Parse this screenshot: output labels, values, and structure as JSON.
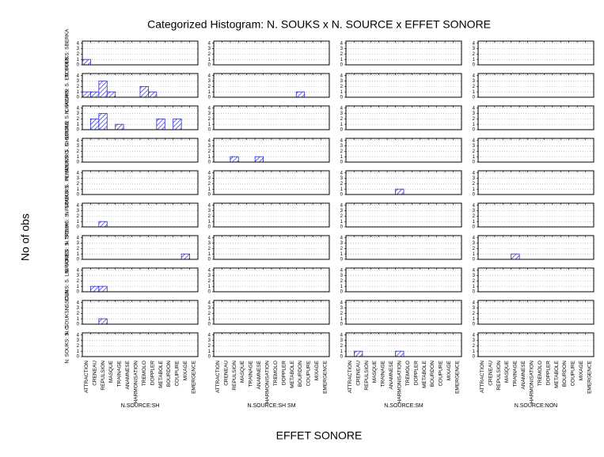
{
  "chart_data": {
    "type": "bar",
    "title": "Categorized Histogram: N. SOUKS x N. SOURCE x EFFET SONORE",
    "xlabel": "EFFET SONORE",
    "ylabel": "No of obs",
    "categories": [
      "ATTRACTION",
      "CRENEAU",
      "REPULSION",
      "MASQUE",
      "TRAINAGE",
      "ANAMNESE",
      "HARMONISATION",
      "TREMOLO",
      "DOPPLER",
      "METABOLE",
      "BOURDON",
      "COUPURE",
      "MIXAGE",
      "EMERGENCE"
    ],
    "columns": [
      "N.SOURCE:SH",
      "N.SOURCE:SH SM",
      "N.SOURCE:SM",
      "N.SOURCE:NON"
    ],
    "rows": [
      "N. SOUKS: SBERKA",
      "N. SOUKS: S. ETOFFES",
      "N. SOUKS: S. CHACHIN",
      "N. SOUKS: S. CHERONE",
      "N. SOUKS: S. FEMMES/RG",
      "N. SOUKS: S. FUMEURS",
      "N. SOUKS: S. TROUK",
      "N. SOUKS: S. LIBRAIRES",
      "N. SOUKS: S. CUN",
      "N. SOUKS: S. C"
    ],
    "color": "#2a2ad0",
    "ylim": [
      0,
      4.4
    ],
    "yticks": [
      0,
      1,
      2,
      3,
      4
    ],
    "grid": true,
    "panels": [
      [
        {
          "values": [
            1,
            0,
            0,
            0,
            0,
            0,
            0,
            0,
            0,
            0,
            0,
            0,
            0,
            0
          ]
        },
        {
          "values": [
            0,
            0,
            0,
            0,
            0,
            0,
            0,
            0,
            0,
            0,
            0,
            0,
            0,
            0
          ]
        },
        {
          "values": [
            0,
            0,
            0,
            0,
            0,
            0,
            0,
            0,
            0,
            0,
            0,
            0,
            0,
            0
          ]
        },
        {
          "values": [
            0,
            0,
            0,
            0,
            0,
            0,
            0,
            0,
            0,
            0,
            0,
            0,
            0,
            0
          ]
        }
      ],
      [
        {
          "values": [
            1,
            1,
            3,
            1,
            0,
            0,
            0,
            2,
            1,
            0,
            0,
            0,
            0,
            0
          ]
        },
        {
          "values": [
            0,
            0,
            0,
            0,
            0,
            0,
            0,
            0,
            0,
            0,
            1,
            0,
            0,
            0
          ]
        },
        {
          "values": [
            0,
            0,
            0,
            0,
            0,
            0,
            0,
            0,
            0,
            0,
            0,
            0,
            0,
            0
          ]
        },
        {
          "values": [
            0,
            0,
            0,
            0,
            0,
            0,
            0,
            0,
            0,
            0,
            0,
            0,
            0,
            0
          ]
        }
      ],
      [
        {
          "values": [
            0,
            2,
            3,
            0,
            1,
            0,
            0,
            0,
            0,
            2,
            0,
            2,
            0,
            0
          ]
        },
        {
          "values": [
            0,
            0,
            0,
            0,
            0,
            0,
            0,
            0,
            0,
            0,
            0,
            0,
            0,
            0
          ]
        },
        {
          "values": [
            0,
            0,
            0,
            0,
            0,
            0,
            0,
            0,
            0,
            0,
            0,
            0,
            0,
            0
          ]
        },
        {
          "values": [
            0,
            0,
            0,
            0,
            0,
            0,
            0,
            0,
            0,
            0,
            0,
            0,
            0,
            0
          ]
        }
      ],
      [
        {
          "values": [
            0,
            0,
            0,
            0,
            0,
            0,
            0,
            0,
            0,
            0,
            0,
            0,
            0,
            0
          ]
        },
        {
          "values": [
            0,
            0,
            1,
            0,
            0,
            1,
            0,
            0,
            0,
            0,
            0,
            0,
            0,
            0
          ]
        },
        {
          "values": [
            0,
            0,
            0,
            0,
            0,
            0,
            0,
            0,
            0,
            0,
            0,
            0,
            0,
            0
          ]
        },
        {
          "values": [
            0,
            0,
            0,
            0,
            0,
            0,
            0,
            0,
            0,
            0,
            0,
            0,
            0,
            0
          ]
        }
      ],
      [
        {
          "values": [
            0,
            0,
            0,
            0,
            0,
            0,
            0,
            0,
            0,
            0,
            0,
            0,
            0,
            0
          ]
        },
        {
          "values": [
            0,
            0,
            0,
            0,
            0,
            0,
            0,
            0,
            0,
            0,
            0,
            0,
            0,
            0
          ]
        },
        {
          "values": [
            0,
            0,
            0,
            0,
            0,
            0,
            1,
            0,
            0,
            0,
            0,
            0,
            0,
            0
          ]
        },
        {
          "values": [
            0,
            0,
            0,
            0,
            0,
            0,
            0,
            0,
            0,
            0,
            0,
            0,
            0,
            0
          ]
        }
      ],
      [
        {
          "values": [
            0,
            0,
            1,
            0,
            0,
            0,
            0,
            0,
            0,
            0,
            0,
            0,
            0,
            0
          ]
        },
        {
          "values": [
            0,
            0,
            0,
            0,
            0,
            0,
            0,
            0,
            0,
            0,
            0,
            0,
            0,
            0
          ]
        },
        {
          "values": [
            0,
            0,
            0,
            0,
            0,
            0,
            0,
            0,
            0,
            0,
            0,
            0,
            0,
            0
          ]
        },
        {
          "values": [
            0,
            0,
            0,
            0,
            0,
            0,
            0,
            0,
            0,
            0,
            0,
            0,
            0,
            0
          ]
        }
      ],
      [
        {
          "values": [
            0,
            0,
            0,
            0,
            0,
            0,
            0,
            0,
            0,
            0,
            0,
            0,
            1,
            0
          ]
        },
        {
          "values": [
            0,
            0,
            0,
            0,
            0,
            0,
            0,
            0,
            0,
            0,
            0,
            0,
            0,
            0
          ]
        },
        {
          "values": [
            0,
            0,
            0,
            0,
            0,
            0,
            0,
            0,
            0,
            0,
            0,
            0,
            0,
            0
          ]
        },
        {
          "values": [
            0,
            0,
            0,
            0,
            1,
            0,
            0,
            0,
            0,
            0,
            0,
            0,
            0,
            0
          ]
        }
      ],
      [
        {
          "values": [
            0,
            1,
            1,
            0,
            0,
            0,
            0,
            0,
            0,
            0,
            0,
            0,
            0,
            0
          ]
        },
        {
          "values": [
            0,
            0,
            0,
            0,
            0,
            0,
            0,
            0,
            0,
            0,
            0,
            0,
            0,
            0
          ]
        },
        {
          "values": [
            0,
            0,
            0,
            0,
            0,
            0,
            0,
            0,
            0,
            0,
            0,
            0,
            0,
            0
          ]
        },
        {
          "values": [
            0,
            0,
            0,
            0,
            0,
            0,
            0,
            0,
            0,
            0,
            0,
            0,
            0,
            0
          ]
        }
      ],
      [
        {
          "values": [
            0,
            0,
            1,
            0,
            0,
            0,
            0,
            0,
            0,
            0,
            0,
            0,
            0,
            0
          ]
        },
        {
          "values": [
            0,
            0,
            0,
            0,
            0,
            0,
            0,
            0,
            0,
            0,
            0,
            0,
            0,
            0
          ]
        },
        {
          "values": [
            0,
            0,
            0,
            0,
            0,
            0,
            0,
            0,
            0,
            0,
            0,
            0,
            0,
            0
          ]
        },
        {
          "values": [
            0,
            0,
            0,
            0,
            0,
            0,
            0,
            0,
            0,
            0,
            0,
            0,
            0,
            0
          ]
        }
      ],
      [
        {
          "values": [
            0,
            0,
            0,
            0,
            0,
            0,
            0,
            0,
            0,
            0,
            0,
            0,
            0,
            0
          ]
        },
        {
          "values": [
            0,
            0,
            0,
            0,
            0,
            0,
            0,
            0,
            0,
            0,
            0,
            0,
            0,
            0
          ]
        },
        {
          "values": [
            0,
            1,
            0,
            0,
            0,
            0,
            1,
            0,
            0,
            0,
            0,
            0,
            0,
            0
          ]
        },
        {
          "values": [
            0,
            0,
            0,
            0,
            0,
            0,
            0,
            0,
            0,
            0,
            0,
            0,
            0,
            0
          ]
        }
      ]
    ]
  }
}
